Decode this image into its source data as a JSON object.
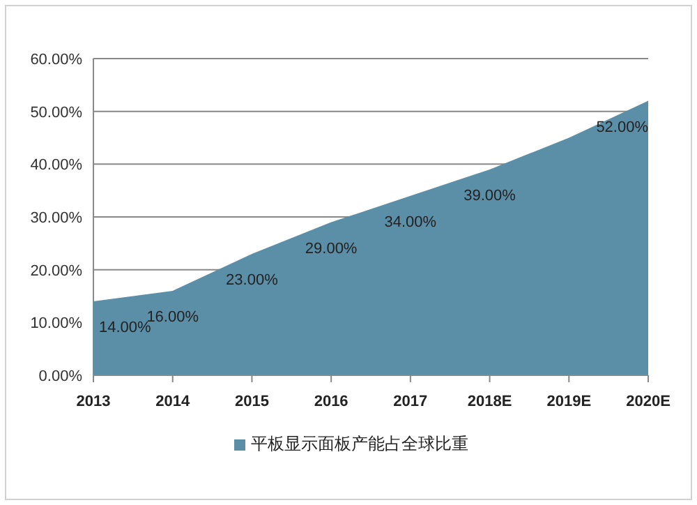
{
  "chart_data": {
    "type": "area",
    "categories": [
      "2013",
      "2014",
      "2015",
      "2016",
      "2017",
      "2018E",
      "2019E",
      "2020E"
    ],
    "series": [
      {
        "name": "平板显示面板产能占全球比重",
        "color": "#5b8fa8",
        "values": [
          14,
          16,
          23,
          29,
          34,
          39,
          45,
          52
        ],
        "value_labels": [
          "14.00%",
          "16.00%",
          "23.00%",
          "29.00%",
          "34.00%",
          "39.00%",
          null,
          "52.00%"
        ]
      }
    ],
    "ylim": [
      0,
      60
    ],
    "yticks": [
      {
        "value": 0,
        "label": "0.00%"
      },
      {
        "value": 10,
        "label": "10.00%"
      },
      {
        "value": 20,
        "label": "20.00%"
      },
      {
        "value": 30,
        "label": "30.00%"
      },
      {
        "value": 40,
        "label": "40.00%"
      },
      {
        "value": 50,
        "label": "50.00%"
      },
      {
        "value": 60,
        "label": "60.00%"
      }
    ],
    "grid": "y",
    "legend": "bottom"
  }
}
